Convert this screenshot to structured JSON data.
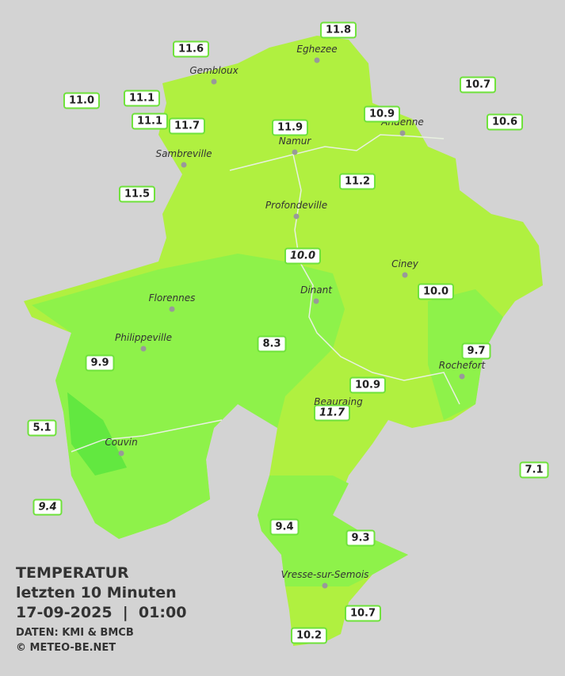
{
  "legend": {
    "title": "TEMPERATUR",
    "subtitle": "letzten 10 Minuten",
    "datetime": "17-09-2025  |  01:00",
    "source": "DATEN: KMI & BMCB",
    "copyright": "© METEO-BE.NET"
  },
  "cities": [
    "Eghezee",
    "Gembloux",
    "Andenne",
    "Namur",
    "Sambreville",
    "Profondeville",
    "Ciney",
    "Dinant",
    "Florennes",
    "Philippeville",
    "Rochefort",
    "Beauraing",
    "Couvin",
    "Vresse-sur-Semois"
  ],
  "stations": [
    "11.8",
    "11.6",
    "10.7",
    "11.0",
    "11.1",
    "10.9",
    "10.6",
    "11.1",
    "11.7",
    "11.9",
    "11.2",
    "11.5",
    "10.0",
    "10.0",
    "8.3",
    "9.7",
    "9.9",
    "10.9",
    "11.7",
    "5.1",
    "7.1",
    "9.4",
    "9.4",
    "9.3",
    "10.7",
    "10.2"
  ]
}
